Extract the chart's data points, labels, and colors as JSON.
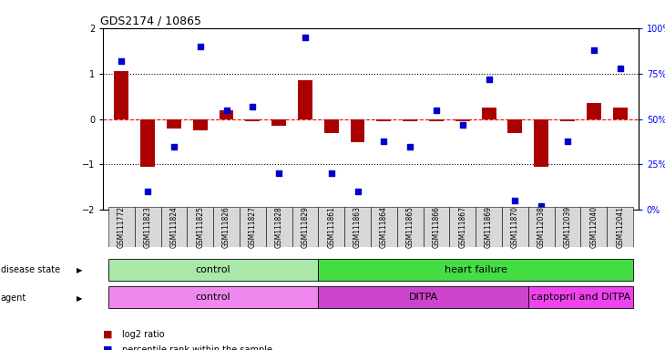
{
  "title": "GDS2174 / 10865",
  "samples": [
    "GSM111772",
    "GSM111823",
    "GSM111824",
    "GSM111825",
    "GSM111826",
    "GSM111827",
    "GSM111828",
    "GSM111829",
    "GSM111861",
    "GSM111863",
    "GSM111864",
    "GSM111865",
    "GSM111866",
    "GSM111867",
    "GSM111869",
    "GSM111870",
    "GSM112038",
    "GSM112039",
    "GSM112040",
    "GSM112041"
  ],
  "log2_ratio": [
    1.05,
    -1.05,
    -0.2,
    -0.25,
    0.2,
    -0.05,
    -0.15,
    0.85,
    -0.3,
    -0.5,
    -0.05,
    -0.05,
    -0.05,
    -0.05,
    0.25,
    -0.3,
    -1.05,
    -0.05,
    0.35,
    0.25
  ],
  "percentile": [
    82,
    10,
    35,
    90,
    55,
    57,
    20,
    95,
    20,
    10,
    38,
    35,
    55,
    47,
    72,
    5,
    2,
    38,
    88,
    78
  ],
  "disease_state_groups": [
    {
      "label": "control",
      "start": 0,
      "end": 8,
      "color": "#aae8aa"
    },
    {
      "label": "heart failure",
      "start": 8,
      "end": 20,
      "color": "#44dd44"
    }
  ],
  "agent_groups": [
    {
      "label": "control",
      "start": 0,
      "end": 8,
      "color": "#ee88ee"
    },
    {
      "label": "DITPA",
      "start": 8,
      "end": 16,
      "color": "#cc44cc"
    },
    {
      "label": "captopril and DITPA",
      "start": 16,
      "end": 20,
      "color": "#ee44ee"
    }
  ],
  "bar_color": "#aa0000",
  "dot_color": "#0000cc",
  "left_ylim": [
    -2,
    2
  ],
  "right_ylim": [
    0,
    100
  ],
  "left_yticks": [
    -2,
    -1,
    0,
    1,
    2
  ],
  "right_yticks": [
    0,
    25,
    50,
    75,
    100
  ],
  "right_yticklabels": [
    "0%",
    "25%",
    "50%",
    "75%",
    "100%"
  ]
}
